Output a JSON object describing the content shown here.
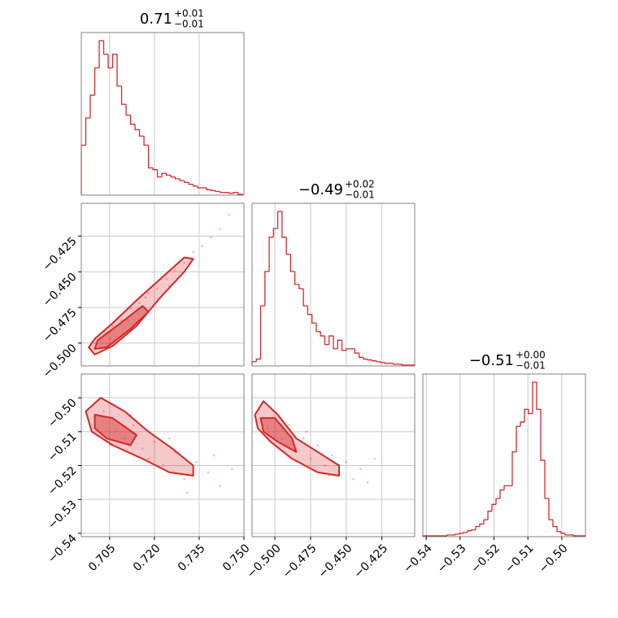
{
  "chart_data": {
    "type": "corner",
    "color": "#d62728",
    "grid": true,
    "parameters": [
      {
        "title": "0.71",
        "title_upper": "+0.01",
        "title_lower": "−0.01",
        "lim": [
          0.6955,
          0.75
        ],
        "ticks": [
          0.705,
          {
            "value": 0.72,
            "label": "0.720"
          },
          0.735,
          {
            "value": 0.75,
            "label": "0.750"
          }
        ],
        "bins": [
          0.6955,
          0.697,
          0.6985,
          0.7,
          0.7015,
          0.703,
          0.7045,
          0.706,
          0.7075,
          0.709,
          0.7105,
          0.712,
          0.7135,
          0.715,
          0.7165,
          0.718,
          0.7195,
          0.721,
          0.7225,
          0.724,
          0.7255,
          0.727,
          0.7285,
          0.73,
          0.7315,
          0.733,
          0.7345,
          0.736,
          0.7375,
          0.739,
          0.7405,
          0.742,
          0.7435,
          0.745,
          0.7465,
          0.748,
          0.7495
        ],
        "counts": [
          55,
          85,
          110,
          140,
          170,
          155,
          140,
          155,
          120,
          100,
          88,
          78,
          72,
          65,
          55,
          30,
          28,
          20,
          24,
          22,
          20,
          18,
          16,
          14,
          12,
          10,
          8,
          8,
          6,
          5,
          4,
          3,
          3,
          2,
          3,
          1
        ]
      },
      {
        "title": "−0.49",
        "title_upper": "+0.02",
        "title_lower": "−0.01",
        "lim": [
          -0.516,
          -0.402
        ],
        "ticks": [
          {
            "value": -0.5,
            "label": "−0.500"
          },
          {
            "value": -0.475,
            "label": "−0.475"
          },
          {
            "value": -0.45,
            "label": "−0.450"
          },
          {
            "value": -0.425,
            "label": "−0.425"
          }
        ],
        "bins": [
          -0.516,
          -0.513,
          -0.51,
          -0.507,
          -0.504,
          -0.501,
          -0.498,
          -0.495,
          -0.492,
          -0.489,
          -0.486,
          -0.483,
          -0.48,
          -0.477,
          -0.474,
          -0.471,
          -0.468,
          -0.465,
          -0.462,
          -0.459,
          -0.456,
          -0.453,
          -0.45,
          -0.447,
          -0.444,
          -0.441,
          -0.438,
          -0.435,
          -0.432,
          -0.429,
          -0.426,
          -0.423,
          -0.42,
          -0.417,
          -0.414,
          -0.411,
          -0.408,
          -0.405,
          -0.402
        ],
        "counts": [
          5,
          8,
          70,
          110,
          150,
          160,
          180,
          150,
          130,
          110,
          95,
          90,
          70,
          60,
          50,
          40,
          35,
          25,
          35,
          20,
          30,
          18,
          20,
          20,
          15,
          10,
          8,
          7,
          6,
          5,
          4,
          3,
          3,
          2,
          2,
          1,
          1,
          1
        ]
      },
      {
        "title": "−0.51",
        "title_upper": "+0.00",
        "title_lower": "−0.01",
        "lim": [
          -0.541,
          -0.493
        ],
        "ticks": [
          {
            "value": -0.54,
            "label": "−0.54"
          },
          {
            "value": -0.53,
            "label": "−0.53"
          },
          {
            "value": -0.52,
            "label": "−0.52"
          },
          {
            "value": -0.51,
            "label": "−0.51"
          },
          {
            "value": -0.5,
            "label": "−0.50"
          }
        ],
        "bins": [
          -0.541,
          -0.5398,
          -0.5386,
          -0.5374,
          -0.5362,
          -0.535,
          -0.5338,
          -0.5326,
          -0.5314,
          -0.5302,
          -0.529,
          -0.5278,
          -0.5266,
          -0.5254,
          -0.5242,
          -0.523,
          -0.5218,
          -0.5206,
          -0.5194,
          -0.5182,
          -0.517,
          -0.5158,
          -0.5146,
          -0.5134,
          -0.5122,
          -0.511,
          -0.5098,
          -0.5086,
          -0.5074,
          -0.5062,
          -0.505,
          -0.5038,
          -0.5026,
          -0.5014,
          -0.5002,
          -0.499,
          -0.4978,
          -0.4966,
          -0.4954,
          -0.4942,
          -0.493
        ],
        "counts": [
          1,
          1,
          1,
          1,
          1,
          1,
          2,
          2,
          3,
          4,
          5,
          7,
          8,
          12,
          15,
          20,
          30,
          38,
          45,
          55,
          60,
          60,
          100,
          130,
          135,
          150,
          145,
          182,
          150,
          90,
          45,
          20,
          12,
          6,
          4,
          2,
          2,
          1,
          1,
          1
        ]
      }
    ],
    "pairs": [
      {
        "x": [
          0.7,
          0.703,
          0.706,
          0.709,
          0.712,
          0.715,
          0.718,
          0.721,
          0.724,
          0.727,
          0.73,
          0.733,
          0.736,
          0.739,
          0.742,
          0.745,
          0.711,
          0.717,
          0.725,
          0.705
        ],
        "y": [
          -0.5,
          -0.492,
          -0.488,
          -0.484,
          -0.476,
          -0.472,
          -0.465,
          -0.462,
          -0.455,
          -0.449,
          -0.444,
          -0.436,
          -0.432,
          -0.426,
          -0.42,
          -0.41,
          -0.484,
          -0.468,
          -0.46,
          -0.497
        ],
        "contours": [
          {
            "x": [
              0.698,
              0.7,
              0.706,
              0.714,
              0.722,
              0.73,
              0.733,
              0.73,
              0.722,
              0.714,
              0.706,
              0.7
            ],
            "y": [
              -0.503,
              -0.508,
              -0.502,
              -0.488,
              -0.468,
              -0.45,
              -0.441,
              -0.44,
              -0.455,
              -0.47,
              -0.486,
              -0.497
            ]
          },
          {
            "x": [
              0.7,
              0.704,
              0.712,
              0.718,
              0.716,
              0.708,
              0.701
            ],
            "y": [
              -0.504,
              -0.503,
              -0.49,
              -0.478,
              -0.474,
              -0.487,
              -0.498
            ]
          }
        ]
      },
      {
        "x": [
          0.7,
          0.703,
          0.707,
          0.71,
          0.713,
          0.716,
          0.72,
          0.723,
          0.727,
          0.73,
          0.734,
          0.738,
          0.742,
          0.746,
          0.712,
          0.718,
          0.725,
          0.705,
          0.731,
          0.74
        ],
        "y": [
          -0.508,
          -0.504,
          -0.51,
          -0.512,
          -0.508,
          -0.515,
          -0.513,
          -0.52,
          -0.516,
          -0.524,
          -0.519,
          -0.522,
          -0.526,
          -0.521,
          -0.505,
          -0.518,
          -0.512,
          -0.514,
          -0.528,
          -0.517
        ],
        "contours": [
          {
            "x": [
              0.697,
              0.702,
              0.71,
              0.718,
              0.726,
              0.733,
              0.733,
              0.725,
              0.716,
              0.706,
              0.699
            ],
            "y": [
              -0.504,
              -0.5,
              -0.504,
              -0.51,
              -0.515,
              -0.52,
              -0.523,
              -0.522,
              -0.518,
              -0.514,
              -0.51
            ]
          },
          {
            "x": [
              0.7,
              0.706,
              0.714,
              0.712,
              0.704,
              0.7
            ],
            "y": [
              -0.505,
              -0.506,
              -0.511,
              -0.514,
              -0.512,
              -0.509
            ]
          }
        ]
      },
      {
        "x": [
          -0.51,
          -0.505,
          -0.5,
          -0.495,
          -0.49,
          -0.485,
          -0.48,
          -0.475,
          -0.47,
          -0.465,
          -0.46,
          -0.455,
          -0.45,
          -0.445,
          -0.44,
          -0.435,
          -0.492,
          -0.478,
          -0.462,
          -0.43
        ],
        "y": [
          -0.506,
          -0.509,
          -0.504,
          -0.512,
          -0.508,
          -0.515,
          -0.512,
          -0.518,
          -0.514,
          -0.52,
          -0.517,
          -0.522,
          -0.519,
          -0.524,
          -0.521,
          -0.525,
          -0.514,
          -0.51,
          -0.523,
          -0.518
        ],
        "contours": [
          {
            "x": [
              -0.514,
              -0.508,
              -0.498,
              -0.485,
              -0.47,
              -0.455,
              -0.455,
              -0.47,
              -0.488,
              -0.503,
              -0.512
            ],
            "y": [
              -0.505,
              -0.501,
              -0.505,
              -0.512,
              -0.516,
              -0.52,
              -0.523,
              -0.522,
              -0.518,
              -0.513,
              -0.509
            ]
          },
          {
            "x": [
              -0.51,
              -0.5,
              -0.488,
              -0.485,
              -0.498,
              -0.508
            ],
            "y": [
              -0.506,
              -0.506,
              -0.512,
              -0.516,
              -0.513,
              -0.51
            ]
          }
        ]
      }
    ]
  }
}
